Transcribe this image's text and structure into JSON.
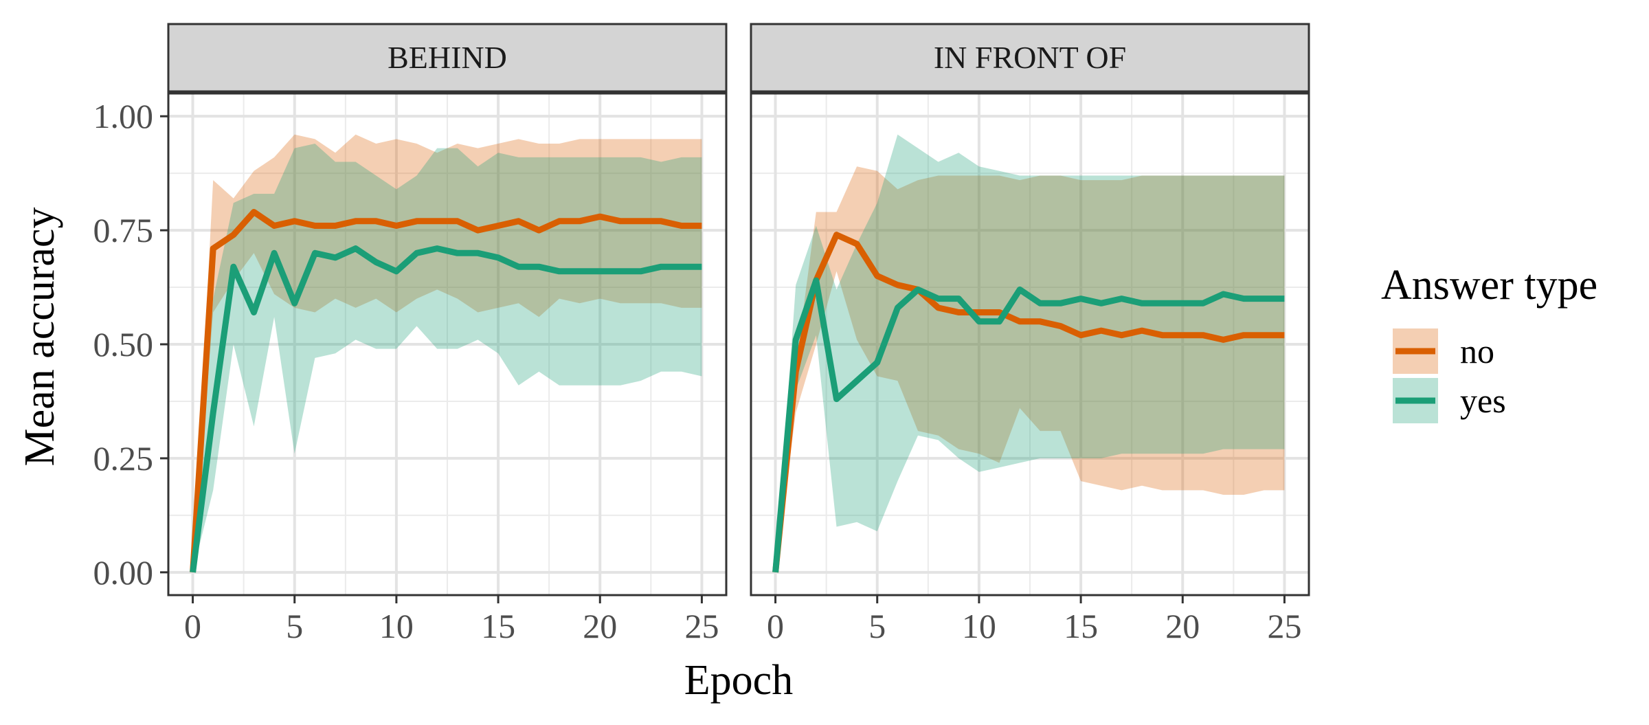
{
  "chart_data": {
    "type": "line",
    "xlabel": "Epoch",
    "ylabel": "Mean accuracy",
    "xlim": [
      -1.2,
      26.2
    ],
    "ylim": [
      -0.05,
      1.05
    ],
    "x_ticks": [
      0,
      5,
      10,
      15,
      20,
      25
    ],
    "x_tick_labels": [
      "0",
      "5",
      "10",
      "15",
      "20",
      "25"
    ],
    "y_ticks": [
      0,
      0.25,
      0.5,
      0.75,
      1.0
    ],
    "y_tick_labels": [
      "0.00",
      "0.25",
      "0.50",
      "0.75",
      "1.00"
    ],
    "grid": true,
    "legend": {
      "title": "Answer type",
      "position": "right",
      "entries": [
        {
          "label": "no",
          "color": "#d95f02"
        },
        {
          "label": "yes",
          "color": "#1b9e77"
        }
      ]
    },
    "colors": {
      "no": "#d95f02",
      "yes": "#1b9e77"
    },
    "panels": [
      {
        "title": "BEHIND",
        "series": [
          {
            "name": "no",
            "x": [
              0,
              1,
              2,
              3,
              4,
              5,
              6,
              7,
              8,
              9,
              10,
              11,
              12,
              13,
              14,
              15,
              16,
              17,
              18,
              19,
              20,
              21,
              22,
              23,
              24,
              25
            ],
            "mean": [
              0.0,
              0.71,
              0.74,
              0.79,
              0.76,
              0.77,
              0.76,
              0.76,
              0.77,
              0.77,
              0.76,
              0.77,
              0.77,
              0.77,
              0.75,
              0.76,
              0.77,
              0.75,
              0.77,
              0.77,
              0.78,
              0.77,
              0.77,
              0.77,
              0.76,
              0.76
            ],
            "upper": [
              0.0,
              0.86,
              0.82,
              0.88,
              0.91,
              0.96,
              0.95,
              0.92,
              0.96,
              0.94,
              0.95,
              0.94,
              0.92,
              0.94,
              0.93,
              0.94,
              0.95,
              0.94,
              0.94,
              0.95,
              0.95,
              0.95,
              0.95,
              0.95,
              0.95,
              0.95
            ],
            "lower": [
              0.0,
              0.57,
              0.64,
              0.7,
              0.61,
              0.58,
              0.57,
              0.6,
              0.58,
              0.6,
              0.57,
              0.6,
              0.62,
              0.6,
              0.57,
              0.58,
              0.59,
              0.56,
              0.6,
              0.59,
              0.6,
              0.59,
              0.59,
              0.59,
              0.58,
              0.58
            ]
          },
          {
            "name": "yes",
            "x": [
              0,
              1,
              2,
              3,
              4,
              5,
              6,
              7,
              8,
              9,
              10,
              11,
              12,
              13,
              14,
              15,
              16,
              17,
              18,
              19,
              20,
              21,
              22,
              23,
              24,
              25
            ],
            "mean": [
              0.0,
              0.35,
              0.67,
              0.57,
              0.7,
              0.59,
              0.7,
              0.69,
              0.71,
              0.68,
              0.66,
              0.7,
              0.71,
              0.7,
              0.7,
              0.69,
              0.67,
              0.67,
              0.66,
              0.66,
              0.66,
              0.66,
              0.66,
              0.67,
              0.67,
              0.67
            ],
            "upper": [
              0.0,
              0.6,
              0.81,
              0.83,
              0.83,
              0.93,
              0.94,
              0.9,
              0.9,
              0.87,
              0.84,
              0.87,
              0.93,
              0.93,
              0.89,
              0.92,
              0.91,
              0.91,
              0.91,
              0.91,
              0.91,
              0.91,
              0.91,
              0.9,
              0.91,
              0.91
            ],
            "lower": [
              0.0,
              0.18,
              0.5,
              0.32,
              0.56,
              0.26,
              0.47,
              0.48,
              0.51,
              0.49,
              0.49,
              0.54,
              0.49,
              0.49,
              0.51,
              0.48,
              0.41,
              0.44,
              0.41,
              0.41,
              0.41,
              0.41,
              0.42,
              0.44,
              0.44,
              0.43
            ]
          }
        ]
      },
      {
        "title": "IN FRONT OF",
        "series": [
          {
            "name": "no",
            "x": [
              0,
              1,
              2,
              3,
              4,
              5,
              6,
              7,
              8,
              9,
              10,
              11,
              12,
              13,
              14,
              15,
              16,
              17,
              18,
              19,
              20,
              21,
              22,
              23,
              24,
              25
            ],
            "mean": [
              0.0,
              0.44,
              0.64,
              0.74,
              0.72,
              0.65,
              0.63,
              0.62,
              0.58,
              0.57,
              0.57,
              0.57,
              0.55,
              0.55,
              0.54,
              0.52,
              0.53,
              0.52,
              0.53,
              0.52,
              0.52,
              0.52,
              0.51,
              0.52,
              0.52,
              0.52
            ],
            "upper": [
              0.0,
              0.45,
              0.79,
              0.79,
              0.89,
              0.88,
              0.84,
              0.86,
              0.87,
              0.87,
              0.87,
              0.87,
              0.86,
              0.87,
              0.87,
              0.86,
              0.86,
              0.86,
              0.87,
              0.87,
              0.87,
              0.87,
              0.87,
              0.87,
              0.87,
              0.87
            ],
            "lower": [
              0.0,
              0.35,
              0.5,
              0.66,
              0.51,
              0.43,
              0.42,
              0.31,
              0.3,
              0.27,
              0.26,
              0.24,
              0.36,
              0.31,
              0.31,
              0.2,
              0.19,
              0.18,
              0.19,
              0.18,
              0.18,
              0.18,
              0.17,
              0.17,
              0.18,
              0.18
            ]
          },
          {
            "name": "yes",
            "x": [
              0,
              1,
              2,
              3,
              4,
              5,
              6,
              7,
              8,
              9,
              10,
              11,
              12,
              13,
              14,
              15,
              16,
              17,
              18,
              19,
              20,
              21,
              22,
              23,
              24,
              25
            ],
            "mean": [
              0.0,
              0.51,
              0.64,
              0.38,
              0.42,
              0.46,
              0.58,
              0.62,
              0.6,
              0.6,
              0.55,
              0.55,
              0.62,
              0.59,
              0.59,
              0.6,
              0.59,
              0.6,
              0.59,
              0.59,
              0.59,
              0.59,
              0.61,
              0.6,
              0.6,
              0.6
            ],
            "upper": [
              0.0,
              0.63,
              0.76,
              0.62,
              0.72,
              0.81,
              0.96,
              0.93,
              0.9,
              0.92,
              0.89,
              0.88,
              0.87,
              0.87,
              0.87,
              0.87,
              0.87,
              0.87,
              0.87,
              0.87,
              0.87,
              0.87,
              0.87,
              0.87,
              0.87,
              0.87
            ],
            "lower": [
              0.0,
              0.4,
              0.52,
              0.1,
              0.11,
              0.09,
              0.2,
              0.3,
              0.29,
              0.25,
              0.22,
              0.23,
              0.24,
              0.25,
              0.25,
              0.25,
              0.25,
              0.26,
              0.26,
              0.26,
              0.26,
              0.26,
              0.27,
              0.27,
              0.27,
              0.27
            ]
          }
        ]
      }
    ]
  }
}
